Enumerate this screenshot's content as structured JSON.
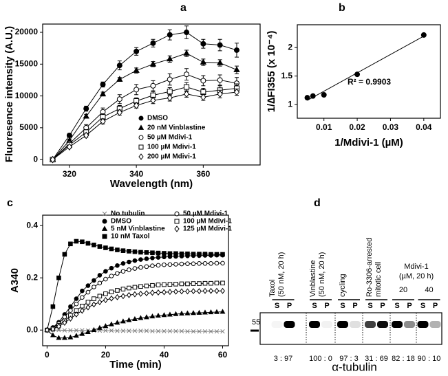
{
  "chart_data": [
    {
      "type": "line",
      "label": "a",
      "x_label": "Wavelength (nm)",
      "y_label": "Fluoresence intensity (A.U.)",
      "x": [
        315,
        320,
        325,
        330,
        335,
        340,
        345,
        350,
        355,
        360,
        365,
        370
      ],
      "xlim": [
        312,
        377
      ],
      "xticks": [
        320,
        340,
        360
      ],
      "ylim": [
        -850,
        21300
      ],
      "yticks": [
        0,
        5000,
        10000,
        15000,
        20000
      ],
      "legend": "lower right",
      "series": [
        {
          "name": "DMSO",
          "color": "#000000",
          "marker": "circle-filled",
          "values": [
            0,
            3800,
            8000,
            11800,
            14800,
            17000,
            18300,
            19600,
            20000,
            18200,
            18000,
            17200
          ],
          "errors": [
            0,
            300,
            400,
            400,
            700,
            600,
            600,
            800,
            1000,
            700,
            900,
            1100
          ]
        },
        {
          "name": "20 nM Vinblastine",
          "color": "#000000",
          "marker": "triangle",
          "values": [
            0,
            3000,
            6800,
            10300,
            12600,
            14000,
            15000,
            15800,
            16700,
            15300,
            15200,
            14100
          ],
          "errors": [
            0,
            200,
            300,
            300,
            300,
            400,
            400,
            500,
            500,
            500,
            500,
            600
          ]
        },
        {
          "name": "50 µM Mdivi-1",
          "color": "#000000",
          "marker": "circle-open",
          "values": [
            0,
            2500,
            5000,
            7500,
            9500,
            11000,
            11600,
            12600,
            13400,
            12400,
            12500,
            12000
          ],
          "errors": [
            0,
            300,
            500,
            600,
            700,
            800,
            800,
            900,
            900,
            800,
            800,
            900
          ]
        },
        {
          "name": "100 µM Mdivi-1",
          "color": "#000000",
          "marker": "square-open",
          "values": [
            0,
            2300,
            4300,
            6700,
            8000,
            9200,
            10100,
            10700,
            11400,
            10600,
            10900,
            11200
          ],
          "errors": [
            0,
            200,
            400,
            500,
            500,
            500,
            600,
            600,
            700,
            600,
            700,
            700
          ]
        },
        {
          "name": "200 µM Mdivi-1",
          "color": "#000000",
          "marker": "diamond-open",
          "values": [
            0,
            2000,
            3800,
            6000,
            7400,
            8500,
            9300,
            9700,
            10300,
            9800,
            10300,
            10600
          ],
          "errors": [
            0,
            200,
            300,
            400,
            400,
            400,
            500,
            500,
            500,
            500,
            600,
            500
          ]
        }
      ]
    },
    {
      "type": "scatter",
      "label": "b",
      "x_label": "1/Mdivi-1 (µM)",
      "y_label": "1/∆FI355 (x 10⁻⁴)",
      "x": [
        0.005,
        0.0067,
        0.01,
        0.02,
        0.04
      ],
      "values": [
        1.12,
        1.15,
        1.17,
        1.53,
        2.22
      ],
      "color": "#000000",
      "marker": "circle-filled",
      "trendline": true,
      "annotation": "R² = 0.9903",
      "xlim": [
        0.002,
        0.045
      ],
      "xticks": [
        0.01,
        0.02,
        0.03,
        0.04
      ],
      "ylim": [
        0.76,
        2.4
      ],
      "yticks": [
        1,
        1.5,
        2
      ]
    },
    {
      "type": "line",
      "label": "c",
      "x_label": "Time (min)",
      "y_label": "A340",
      "x": [
        0,
        2,
        4,
        6,
        8,
        10,
        12,
        14,
        16,
        18,
        20,
        22,
        24,
        26,
        28,
        30,
        32,
        34,
        36,
        38,
        40,
        42,
        44,
        46,
        48,
        50,
        52,
        54,
        56,
        58,
        60
      ],
      "xlim": [
        -1.5,
        62
      ],
      "xticks": [
        0,
        20,
        40,
        60
      ],
      "ylim": [
        -0.06,
        0.44
      ],
      "yticks": [
        {
          "value": 0,
          "label": "0.0"
        },
        0.2,
        0.4
      ],
      "legend": "upper center",
      "series": [
        {
          "name": "No tubulin",
          "color": "#808080",
          "marker": "x",
          "values": [
            0,
            0,
            0,
            -0.001,
            -0.001,
            -0.001,
            -0.001,
            -0.002,
            -0.002,
            -0.002,
            -0.002,
            -0.002,
            -0.003,
            -0.003,
            -0.003,
            -0.003,
            -0.003,
            -0.003,
            -0.004,
            -0.004,
            -0.004,
            -0.004,
            -0.004,
            -0.004,
            -0.005,
            -0.005,
            -0.005,
            -0.005,
            -0.005,
            -0.005,
            -0.005
          ]
        },
        {
          "name": "DMSO",
          "color": "#000000",
          "marker": "circle-filled",
          "values": [
            0,
            0.01,
            0.03,
            0.06,
            0.09,
            0.12,
            0.15,
            0.17,
            0.19,
            0.21,
            0.225,
            0.237,
            0.247,
            0.255,
            0.261,
            0.266,
            0.27,
            0.273,
            0.276,
            0.278,
            0.28,
            0.281,
            0.282,
            0.283,
            0.284,
            0.285,
            0.285,
            0.286,
            0.286,
            0.287,
            0.287
          ]
        },
        {
          "name": "5 nM Vinblastine",
          "color": "#000000",
          "marker": "triangle",
          "values": [
            0,
            -0.02,
            -0.03,
            -0.03,
            -0.028,
            -0.022,
            -0.015,
            -0.008,
            0,
            0.008,
            0.015,
            0.022,
            0.028,
            0.033,
            0.038,
            0.042,
            0.046,
            0.049,
            0.052,
            0.055,
            0.057,
            0.059,
            0.061,
            0.063,
            0.064,
            0.065,
            0.066,
            0.067,
            0.068,
            0.069,
            0.07
          ]
        },
        {
          "name": "10 nM Taxol",
          "color": "#000000",
          "marker": "square-filled",
          "values": [
            0,
            0.09,
            0.2,
            0.29,
            0.33,
            0.34,
            0.338,
            0.332,
            0.326,
            0.32,
            0.315,
            0.311,
            0.307,
            0.304,
            0.302,
            0.3,
            0.298,
            0.297,
            0.296,
            0.295,
            0.294,
            0.293,
            0.293,
            0.292,
            0.292,
            0.291,
            0.291,
            0.291,
            0.29,
            0.29,
            0.29
          ]
        },
        {
          "name": "50 µM Mdivi-1",
          "color": "#000000",
          "marker": "circle-open",
          "values": [
            0,
            0.008,
            0.025,
            0.05,
            0.075,
            0.1,
            0.125,
            0.145,
            0.165,
            0.18,
            0.195,
            0.207,
            0.217,
            0.225,
            0.231,
            0.236,
            0.24,
            0.243,
            0.246,
            0.248,
            0.25,
            0.251,
            0.252,
            0.253,
            0.254,
            0.254,
            0.255,
            0.255,
            0.255,
            0.256,
            0.256
          ]
        },
        {
          "name": "100 µM Mdivi-1",
          "color": "#000000",
          "marker": "square-open",
          "values": [
            0,
            0.005,
            0.018,
            0.035,
            0.055,
            0.075,
            0.092,
            0.107,
            0.12,
            0.13,
            0.139,
            0.146,
            0.152,
            0.157,
            0.161,
            0.164,
            0.167,
            0.169,
            0.171,
            0.173,
            0.174,
            0.175,
            0.176,
            0.177,
            0.177,
            0.178,
            0.178,
            0.179,
            0.179,
            0.18,
            0.18
          ]
        },
        {
          "name": "125 µM Mdivi-1",
          "color": "#000000",
          "marker": "diamond-open",
          "values": [
            0,
            0.004,
            0.014,
            0.028,
            0.044,
            0.06,
            0.074,
            0.087,
            0.098,
            0.107,
            0.115,
            0.121,
            0.126,
            0.13,
            0.134,
            0.137,
            0.139,
            0.141,
            0.143,
            0.144,
            0.145,
            0.146,
            0.147,
            0.148,
            0.148,
            0.149,
            0.149,
            0.15,
            0.15,
            0.15,
            0.15
          ]
        }
      ]
    }
  ],
  "blot": {
    "label": "d",
    "marker": "55",
    "protein": "α-tubulin",
    "groups": [
      {
        "lines": [
          "Taxol",
          "(50 nM, 20 h)"
        ]
      },
      {
        "lines": [
          "Vinblastine",
          "(50 nM, 20 h)"
        ]
      },
      {
        "lines": [
          "cycling"
        ]
      },
      {
        "lines": [
          "Ro-3306-arrested",
          "mitotic cell"
        ]
      },
      {
        "lines": [
          "Mdivi-1",
          "(µM, 20 h)"
        ],
        "doses": [
          "20",
          "40"
        ]
      }
    ],
    "lanes": [
      {
        "fractions": [
          "S",
          "P"
        ],
        "ratio": "3 : 97"
      },
      {
        "fractions": [
          "S",
          "P"
        ],
        "ratio": "100 : 0"
      },
      {
        "fractions": [
          "S",
          "P"
        ],
        "ratio": "97 : 3"
      },
      {
        "fractions": [
          "S",
          "P"
        ],
        "ratio": "31 : 69"
      },
      {
        "fractions": [
          "S",
          "P"
        ],
        "ratio": "82 : 18"
      },
      {
        "fractions": [
          "S",
          "P"
        ],
        "ratio": "90 : 10"
      }
    ]
  }
}
